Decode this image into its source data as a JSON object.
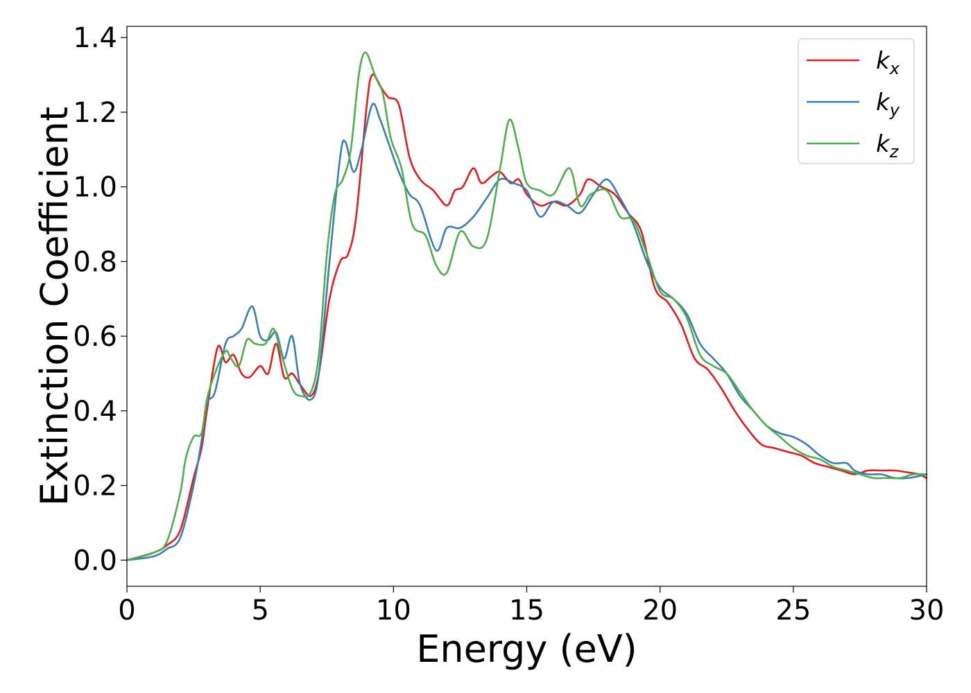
{
  "chart_data": {
    "type": "line",
    "xlabel": "Energy (eV)",
    "ylabel": "Extinction Coefficient",
    "xlim": [
      0,
      30
    ],
    "ylim": [
      -0.07,
      1.43
    ],
    "xticks": [
      0,
      5,
      10,
      15,
      20,
      25,
      30
    ],
    "yticks": [
      0.0,
      0.2,
      0.4,
      0.6,
      0.8,
      1.0,
      1.2,
      1.4
    ],
    "xtick_labels": [
      "0",
      "5",
      "10",
      "15",
      "20",
      "25",
      "30"
    ],
    "ytick_labels": [
      "0.0",
      "0.2",
      "0.4",
      "0.6",
      "0.8",
      "1.0",
      "1.2",
      "1.4"
    ],
    "grid": false,
    "legend_position": "top-right",
    "series": [
      {
        "name": "k",
        "subscript": "x",
        "color": "#e41a1c",
        "x": [
          0,
          1,
          1.5,
          2,
          2.5,
          2.8,
          3.0,
          3.4,
          3.7,
          4.0,
          4.3,
          4.6,
          5.0,
          5.3,
          5.6,
          5.9,
          6.2,
          6.5,
          6.9,
          7.2,
          7.6,
          8.0,
          8.3,
          8.6,
          9.0,
          9.2,
          9.5,
          9.8,
          10.2,
          10.6,
          11.0,
          11.5,
          12.0,
          12.3,
          12.6,
          13.0,
          13.3,
          13.7,
          14.0,
          14.4,
          14.7,
          15.0,
          15.5,
          16.0,
          16.5,
          17.0,
          17.3,
          17.8,
          18.3,
          18.8,
          19.3,
          19.8,
          20.3,
          20.8,
          21.3,
          21.8,
          22.3,
          22.8,
          23.3,
          23.8,
          24.3,
          24.8,
          25.3,
          25.8,
          26.3,
          26.8,
          27.3,
          27.8,
          28.3,
          28.8,
          29.3,
          29.7,
          30
        ],
        "y": [
          0,
          0.02,
          0.04,
          0.08,
          0.22,
          0.3,
          0.4,
          0.57,
          0.53,
          0.55,
          0.5,
          0.49,
          0.52,
          0.5,
          0.58,
          0.49,
          0.5,
          0.47,
          0.44,
          0.5,
          0.7,
          0.8,
          0.82,
          0.92,
          1.22,
          1.3,
          1.27,
          1.24,
          1.22,
          1.08,
          1.02,
          0.99,
          0.95,
          0.99,
          1.0,
          1.05,
          1.01,
          1.03,
          1.04,
          1.01,
          1.02,
          0.98,
          0.95,
          0.96,
          0.95,
          0.98,
          1.02,
          1.0,
          0.98,
          0.93,
          0.88,
          0.73,
          0.69,
          0.63,
          0.54,
          0.51,
          0.46,
          0.4,
          0.35,
          0.31,
          0.3,
          0.29,
          0.28,
          0.26,
          0.25,
          0.24,
          0.23,
          0.24,
          0.24,
          0.24,
          0.235,
          0.23,
          0.22
        ]
      },
      {
        "name": "k",
        "subscript": "y",
        "color": "#377eb8",
        "x": [
          0,
          1,
          1.5,
          2,
          2.5,
          2.8,
          3.0,
          3.3,
          3.7,
          4.0,
          4.3,
          4.7,
          5.0,
          5.3,
          5.6,
          5.9,
          6.2,
          6.5,
          6.9,
          7.2,
          7.6,
          8.0,
          8.2,
          8.5,
          8.8,
          9.2,
          9.5,
          9.8,
          10.2,
          10.6,
          11.0,
          11.6,
          12.0,
          12.5,
          13.0,
          13.5,
          14.0,
          14.5,
          15.0,
          15.5,
          16.0,
          16.5,
          17.0,
          17.5,
          18.0,
          18.5,
          19.0,
          19.5,
          20.0,
          20.5,
          21.0,
          21.5,
          22.0,
          22.5,
          23.0,
          23.5,
          24.0,
          24.5,
          25.0,
          25.5,
          26.0,
          26.5,
          27.0,
          27.3,
          27.8,
          28.3,
          28.8,
          29.3,
          29.7,
          30
        ],
        "y": [
          0,
          0.01,
          0.03,
          0.06,
          0.2,
          0.32,
          0.42,
          0.45,
          0.58,
          0.6,
          0.62,
          0.68,
          0.6,
          0.59,
          0.61,
          0.54,
          0.6,
          0.47,
          0.43,
          0.5,
          0.8,
          1.08,
          1.12,
          1.04,
          1.1,
          1.22,
          1.18,
          1.12,
          1.04,
          0.98,
          0.95,
          0.83,
          0.89,
          0.89,
          0.92,
          0.97,
          1.02,
          1.01,
          0.99,
          0.92,
          0.96,
          0.95,
          0.93,
          0.98,
          1.02,
          0.97,
          0.9,
          0.8,
          0.73,
          0.7,
          0.66,
          0.58,
          0.54,
          0.5,
          0.44,
          0.4,
          0.36,
          0.34,
          0.33,
          0.31,
          0.28,
          0.26,
          0.26,
          0.24,
          0.23,
          0.23,
          0.22,
          0.22,
          0.225,
          0.23
        ]
      },
      {
        "name": "k",
        "subscript": "z",
        "color": "#4daf4a",
        "x": [
          0,
          1,
          1.5,
          2,
          2.2,
          2.5,
          2.8,
          3.0,
          3.3,
          3.7,
          3.9,
          4.2,
          4.5,
          4.8,
          5.2,
          5.5,
          5.8,
          6.2,
          6.5,
          6.9,
          7.2,
          7.5,
          7.8,
          8.1,
          8.4,
          8.7,
          8.95,
          9.3,
          9.6,
          9.9,
          10.3,
          10.7,
          11.2,
          11.6,
          12.0,
          12.5,
          13.0,
          13.5,
          14.0,
          14.35,
          14.7,
          15.0,
          15.5,
          16.0,
          16.6,
          17.0,
          17.4,
          18.0,
          18.5,
          19.0,
          19.5,
          20.0,
          20.5,
          21.0,
          21.5,
          22.0,
          22.5,
          23.0,
          23.5,
          24.0,
          24.5,
          25.0,
          25.5,
          26.0,
          26.5,
          27.0,
          27.5,
          28.0,
          28.5,
          29.0,
          29.5,
          30
        ],
        "y": [
          0,
          0.02,
          0.05,
          0.18,
          0.27,
          0.33,
          0.34,
          0.43,
          0.5,
          0.56,
          0.54,
          0.52,
          0.59,
          0.58,
          0.58,
          0.62,
          0.55,
          0.46,
          0.44,
          0.45,
          0.55,
          0.82,
          0.98,
          1.02,
          1.1,
          1.3,
          1.36,
          1.3,
          1.25,
          1.13,
          1.05,
          0.9,
          0.87,
          0.79,
          0.77,
          0.88,
          0.84,
          0.86,
          1.05,
          1.18,
          1.1,
          1.01,
          0.99,
          0.98,
          1.05,
          0.95,
          0.98,
          0.99,
          0.92,
          0.91,
          0.82,
          0.72,
          0.7,
          0.65,
          0.55,
          0.52,
          0.5,
          0.45,
          0.4,
          0.36,
          0.33,
          0.3,
          0.28,
          0.27,
          0.25,
          0.24,
          0.23,
          0.22,
          0.22,
          0.22,
          0.23,
          0.23
        ]
      }
    ]
  }
}
